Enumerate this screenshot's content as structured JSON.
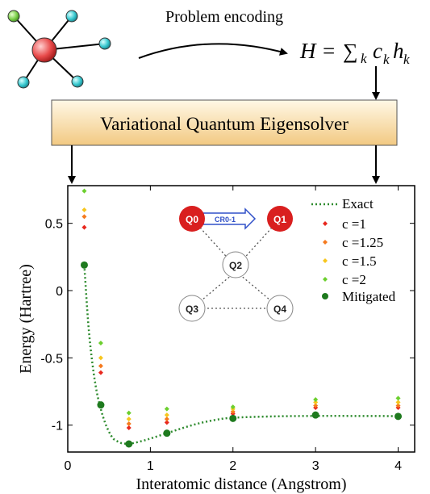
{
  "header": {
    "encoding_label": "Problem encoding",
    "hamiltonian": {
      "H": "H",
      "equals": "=",
      "sum": "∑",
      "sub_k": "k",
      "c": "c",
      "h": "h"
    }
  },
  "vqe_box": {
    "label": "Variational Quantum Eigensolver",
    "fill_top": "#fff8e6",
    "fill_bottom": "#f2c982"
  },
  "molecule": {
    "center_color": "#e84a4a",
    "outer_colors": [
      "#7ccf4a",
      "#38c8cf",
      "#38c8cf",
      "#38c8cf",
      "#38c8cf"
    ]
  },
  "chart_data": {
    "type": "scatter",
    "xlabel": "Interatomic distance (Angstrom)",
    "ylabel": "Energy (Hartree)",
    "xlim": [
      0,
      4.2
    ],
    "ylim": [
      -1.2,
      0.78
    ],
    "xticks": [
      0,
      1,
      2,
      3,
      4
    ],
    "xtick_labels": [
      "0",
      "1",
      "2",
      "3",
      "4"
    ],
    "yticks": [
      0.5,
      0,
      -0.5,
      -1
    ],
    "ytick_labels": [
      "0.5",
      "0",
      "-0.5",
      "-1"
    ],
    "legend_placement": "top-right",
    "exact_curve": {
      "name": "Exact",
      "color": "#2e8b2e",
      "x": [
        0.2,
        0.25,
        0.3,
        0.35,
        0.4,
        0.45,
        0.5,
        0.55,
        0.6,
        0.65,
        0.7,
        0.75,
        0.8,
        0.9,
        1.0,
        1.2,
        1.4,
        1.6,
        1.8,
        2.0,
        2.5,
        3.0,
        3.5,
        4.0
      ],
      "y": [
        0.19,
        -0.26,
        -0.55,
        -0.75,
        -0.88,
        -0.98,
        -1.05,
        -1.1,
        -1.12,
        -1.134,
        -1.138,
        -1.137,
        -1.133,
        -1.118,
        -1.1,
        -1.06,
        -1.02,
        -0.985,
        -0.96,
        -0.945,
        -0.935,
        -0.932,
        -0.932,
        -0.933
      ]
    },
    "series": [
      {
        "name": "c =1",
        "color": "#e8281e",
        "marker": "diamond",
        "x": [
          0.2,
          0.4,
          0.74,
          1.2,
          2.0,
          3.0,
          4.0
        ],
        "y": [
          0.47,
          -0.61,
          -1.02,
          -0.98,
          -0.915,
          -0.87,
          -0.87
        ]
      },
      {
        "name": "c =1.25",
        "color": "#f57a1e",
        "marker": "diamond",
        "x": [
          0.2,
          0.4,
          0.74,
          1.2,
          2.0,
          3.0,
          4.0
        ],
        "y": [
          0.55,
          -0.56,
          -0.99,
          -0.955,
          -0.9,
          -0.855,
          -0.855
        ]
      },
      {
        "name": "c =1.5",
        "color": "#f7c61e",
        "marker": "diamond",
        "x": [
          0.2,
          0.4,
          0.74,
          1.2,
          2.0,
          3.0,
          4.0
        ],
        "y": [
          0.6,
          -0.5,
          -0.955,
          -0.925,
          -0.88,
          -0.83,
          -0.83
        ]
      },
      {
        "name": "c =2",
        "color": "#6ccf2e",
        "marker": "diamond",
        "x": [
          0.2,
          0.4,
          0.74,
          1.2,
          2.0,
          3.0,
          4.0
        ],
        "y": [
          0.74,
          -0.39,
          -0.91,
          -0.88,
          -0.865,
          -0.81,
          -0.8
        ]
      },
      {
        "name": "Mitigated",
        "color": "#1e7a1e",
        "marker": "circle",
        "x": [
          0.2,
          0.4,
          0.74,
          1.2,
          2.0,
          3.0,
          4.0
        ],
        "y": [
          0.19,
          -0.85,
          -1.14,
          -1.06,
          -0.95,
          -0.925,
          -0.935
        ]
      }
    ]
  },
  "qubit_inset": {
    "qubits": [
      "Q0",
      "Q1",
      "Q2",
      "Q3",
      "Q4"
    ],
    "active_color": "#d91f1f",
    "gate_label": "CR0-1",
    "gate_color": "#3050c8"
  }
}
